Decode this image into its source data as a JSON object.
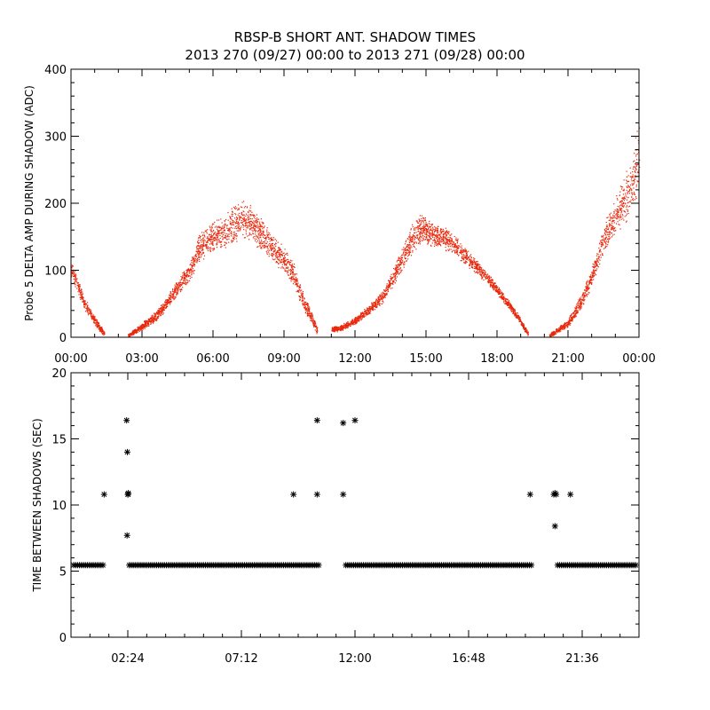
{
  "title_line1": "RBSP-B SHORT ANT. SHADOW TIMES",
  "title_line2": "2013 270 (09/27) 00:00 to 2013 271 (09/28) 00:00",
  "colors": {
    "top_points": "#e8280c",
    "bottom_points": "#000000",
    "axes": "#000000"
  },
  "chart_data": [
    {
      "type": "scatter",
      "name": "delta-amp",
      "ylabel": "Probe 5 DELTA AMP DURING SHADOW (ADC)",
      "xlabel": "",
      "x_units": "hours since 2013-09-27 00:00",
      "xlim": [
        0,
        24
      ],
      "ylim": [
        0,
        400
      ],
      "xticks": [
        0,
        3,
        6,
        9,
        12,
        15,
        18,
        21,
        24
      ],
      "xtick_labels": [
        "00:00",
        "03:00",
        "06:00",
        "09:00",
        "12:00",
        "15:00",
        "18:00",
        "21:00",
        "00:00"
      ],
      "yticks": [
        0,
        100,
        200,
        300,
        400
      ],
      "ytick_labels": [
        "0",
        "100",
        "200",
        "300",
        "400"
      ],
      "envelope_description": "dense point cloud; centre value vs hour, with band half-width",
      "series": [
        {
          "name": "segment-1",
          "x": [
            0.0,
            0.3,
            0.6,
            0.9,
            1.2,
            1.4
          ],
          "y": [
            105,
            75,
            48,
            30,
            15,
            5
          ],
          "spread": [
            15,
            12,
            10,
            8,
            6,
            4
          ]
        },
        {
          "name": "segment-2",
          "x": [
            2.4,
            2.8,
            3.2,
            3.6,
            4.0,
            4.4,
            4.8,
            5.2,
            5.4,
            6.0,
            6.6,
            7.2,
            7.6,
            8.0,
            8.6,
            9.0,
            9.4,
            9.8,
            10.2,
            10.4
          ],
          "y": [
            3,
            12,
            22,
            32,
            50,
            70,
            88,
            112,
            135,
            150,
            162,
            178,
            170,
            155,
            130,
            115,
            95,
            55,
            25,
            10
          ],
          "spread": [
            3,
            5,
            7,
            8,
            10,
            12,
            14,
            18,
            25,
            25,
            28,
            30,
            28,
            25,
            22,
            20,
            18,
            15,
            10,
            6
          ]
        },
        {
          "name": "segment-3",
          "x": [
            11.0,
            11.4,
            12.0,
            12.6,
            13.2,
            13.6,
            14.0,
            14.4,
            14.8,
            15.2,
            15.6,
            16.0,
            16.4,
            17.0,
            17.6,
            18.2,
            18.8,
            19.3
          ],
          "y": [
            12,
            14,
            25,
            42,
            62,
            90,
            118,
            148,
            165,
            155,
            150,
            145,
            130,
            110,
            88,
            62,
            35,
            5
          ],
          "spread": [
            4,
            5,
            6,
            8,
            10,
            14,
            18,
            24,
            24,
            20,
            18,
            18,
            15,
            12,
            10,
            8,
            6,
            4
          ]
        },
        {
          "name": "segment-4",
          "x": [
            20.2,
            20.6,
            21.0,
            21.3,
            21.6,
            21.9,
            22.2,
            22.5,
            22.8,
            23.1,
            23.4,
            23.7,
            24.0
          ],
          "y": [
            3,
            12,
            22,
            38,
            58,
            82,
            112,
            148,
            168,
            188,
            205,
            230,
            270
          ],
          "spread": [
            3,
            5,
            7,
            10,
            12,
            15,
            18,
            22,
            28,
            35,
            40,
            45,
            55
          ]
        }
      ]
    },
    {
      "type": "scatter",
      "name": "time-between-shadows",
      "ylabel": "TIME BETWEEN SHADOWS (SEC)",
      "xlabel": "",
      "x_units": "hours since 2013-09-27 00:00",
      "xlim": [
        0,
        24
      ],
      "ylim": [
        0,
        20
      ],
      "xticks": [
        2.4,
        7.2,
        12.0,
        16.8,
        21.6
      ],
      "xtick_labels": [
        "02:24",
        "07:12",
        "12:00",
        "16:48",
        "21:36"
      ],
      "yticks": [
        0,
        5,
        10,
        15,
        20
      ],
      "ytick_labels": [
        "0",
        "5",
        "10",
        "15",
        "20"
      ],
      "marker": "*",
      "baseline_value": 5.45,
      "baseline_ranges": [
        [
          0.0,
          1.5
        ],
        [
          2.35,
          10.6
        ],
        [
          11.5,
          19.6
        ],
        [
          20.45,
          24.0
        ]
      ],
      "outliers": {
        "x": [
          1.4,
          2.35,
          2.4,
          2.38,
          2.42,
          2.37,
          2.41,
          9.4,
          10.4,
          10.4,
          11.5,
          11.5,
          12.0,
          19.4,
          20.4,
          20.45,
          20.5,
          20.45,
          21.1
        ],
        "y": [
          10.8,
          16.4,
          10.8,
          14.0,
          10.9,
          7.7,
          10.8,
          10.8,
          16.4,
          10.8,
          16.2,
          10.8,
          16.4,
          10.8,
          10.8,
          10.9,
          10.8,
          8.4,
          10.8
        ]
      }
    }
  ]
}
